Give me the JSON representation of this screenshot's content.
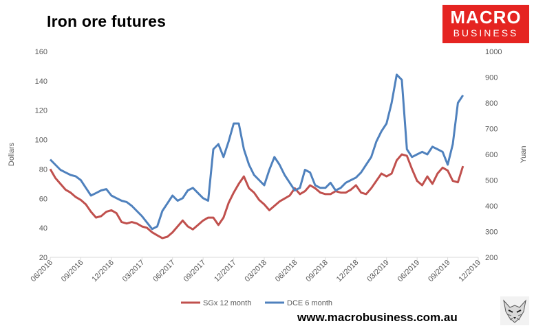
{
  "header": {
    "title": "Iron ore futures"
  },
  "logo": {
    "line1": "MACRO",
    "line2": "BUSINESS"
  },
  "footer": {
    "website": "www.macrobusiness.com.au"
  },
  "chart_data": {
    "type": "line",
    "title": "Iron ore futures",
    "ylabel_left": "Dollars",
    "ylabel_right": "Yuan",
    "x_ticks": [
      "06/2016",
      "09/2016",
      "12/2016",
      "03/2017",
      "06/2017",
      "09/2017",
      "12/2017",
      "03/2018",
      "06/2018",
      "09/2018",
      "12/2018",
      "03/2019",
      "06/2019",
      "09/2019",
      "12/2019"
    ],
    "y_left_ticks": [
      20,
      40,
      60,
      80,
      100,
      120,
      140,
      160
    ],
    "y_right_ticks": [
      200,
      300,
      400,
      500,
      600,
      700,
      800,
      900,
      1000
    ],
    "ylim_left": [
      20,
      160
    ],
    "ylim_right": [
      200,
      1000
    ],
    "xlim_months": [
      0,
      42
    ],
    "grid": false,
    "legend_position": "bottom-center",
    "colors": {
      "sgx": "#c0504d",
      "dce": "#4f81bd"
    },
    "series": [
      {
        "name": "SGx 12 month",
        "axis": "left",
        "x": [
          0.0,
          0.5,
          1.0,
          1.5,
          2.0,
          2.5,
          3.0,
          3.5,
          4.0,
          4.5,
          5.0,
          5.5,
          6.0,
          6.5,
          7.0,
          7.5,
          8.0,
          8.5,
          9.0,
          9.5,
          10.0,
          10.5,
          11.0,
          11.5,
          12.0,
          12.5,
          13.0,
          13.5,
          14.0,
          14.5,
          15.0,
          15.5,
          16.0,
          16.5,
          17.0,
          17.5,
          18.0,
          18.5,
          19.0,
          19.5,
          20.0,
          20.5,
          21.0,
          21.5,
          22.0,
          22.5,
          23.0,
          23.5,
          24.0,
          24.5,
          25.0,
          25.5,
          26.0,
          26.5,
          27.0,
          27.5,
          28.0,
          28.5,
          29.0,
          29.5,
          30.0,
          30.5,
          31.0,
          31.5,
          32.0,
          32.5,
          33.0,
          33.5,
          34.0,
          34.5,
          35.0,
          35.5,
          36.0,
          36.5,
          37.0,
          37.5,
          38.0,
          38.5,
          39.0,
          39.5,
          40.0,
          40.5
        ],
        "values": [
          80,
          74,
          70,
          66,
          64,
          61,
          59,
          56,
          51,
          47,
          48,
          51,
          52,
          50,
          44,
          43,
          44,
          43,
          41,
          40,
          37,
          35,
          33,
          34,
          37,
          41,
          45,
          41,
          39,
          42,
          45,
          47,
          47,
          42,
          47,
          57,
          64,
          70,
          75,
          67,
          64,
          59,
          56,
          52,
          55,
          58,
          60,
          62,
          67,
          63,
          65,
          69,
          67,
          64,
          63,
          63,
          65,
          64,
          64,
          66,
          69,
          64,
          63,
          67,
          72,
          77,
          75,
          77,
          86,
          90,
          89,
          80,
          72,
          69,
          75,
          70,
          77,
          81,
          79,
          72,
          71,
          82
        ]
      },
      {
        "name": "DCE 6 month",
        "axis": "right",
        "x": [
          0.0,
          0.5,
          1.0,
          1.5,
          2.0,
          2.5,
          3.0,
          3.5,
          4.0,
          4.5,
          5.0,
          5.5,
          6.0,
          6.5,
          7.0,
          7.5,
          8.0,
          8.5,
          9.0,
          9.5,
          10.0,
          10.5,
          11.0,
          11.5,
          12.0,
          12.5,
          13.0,
          13.5,
          14.0,
          14.5,
          15.0,
          15.5,
          16.0,
          16.5,
          17.0,
          17.5,
          18.0,
          18.5,
          19.0,
          19.5,
          20.0,
          20.5,
          21.0,
          21.5,
          22.0,
          22.5,
          23.0,
          23.5,
          24.0,
          24.5,
          25.0,
          25.5,
          26.0,
          26.5,
          27.0,
          27.5,
          28.0,
          28.5,
          29.0,
          29.5,
          30.0,
          30.5,
          31.0,
          31.5,
          32.0,
          32.5,
          33.0,
          33.5,
          34.0,
          34.5,
          35.0,
          35.5,
          36.0,
          36.5,
          37.0,
          37.5,
          38.0,
          38.5,
          39.0,
          39.5,
          40.0,
          40.5
        ],
        "values": [
          580,
          560,
          540,
          530,
          520,
          515,
          500,
          470,
          440,
          450,
          460,
          465,
          440,
          430,
          420,
          415,
          400,
          380,
          360,
          335,
          310,
          320,
          380,
          410,
          440,
          420,
          430,
          460,
          470,
          450,
          430,
          420,
          620,
          640,
          590,
          650,
          720,
          720,
          620,
          560,
          520,
          500,
          480,
          540,
          590,
          560,
          520,
          490,
          460,
          470,
          540,
          530,
          480,
          470,
          470,
          490,
          460,
          470,
          490,
          500,
          510,
          530,
          560,
          590,
          650,
          690,
          720,
          800,
          910,
          890,
          620,
          590,
          600,
          610,
          600,
          630,
          620,
          610,
          560,
          640,
          800,
          830
        ]
      }
    ]
  }
}
